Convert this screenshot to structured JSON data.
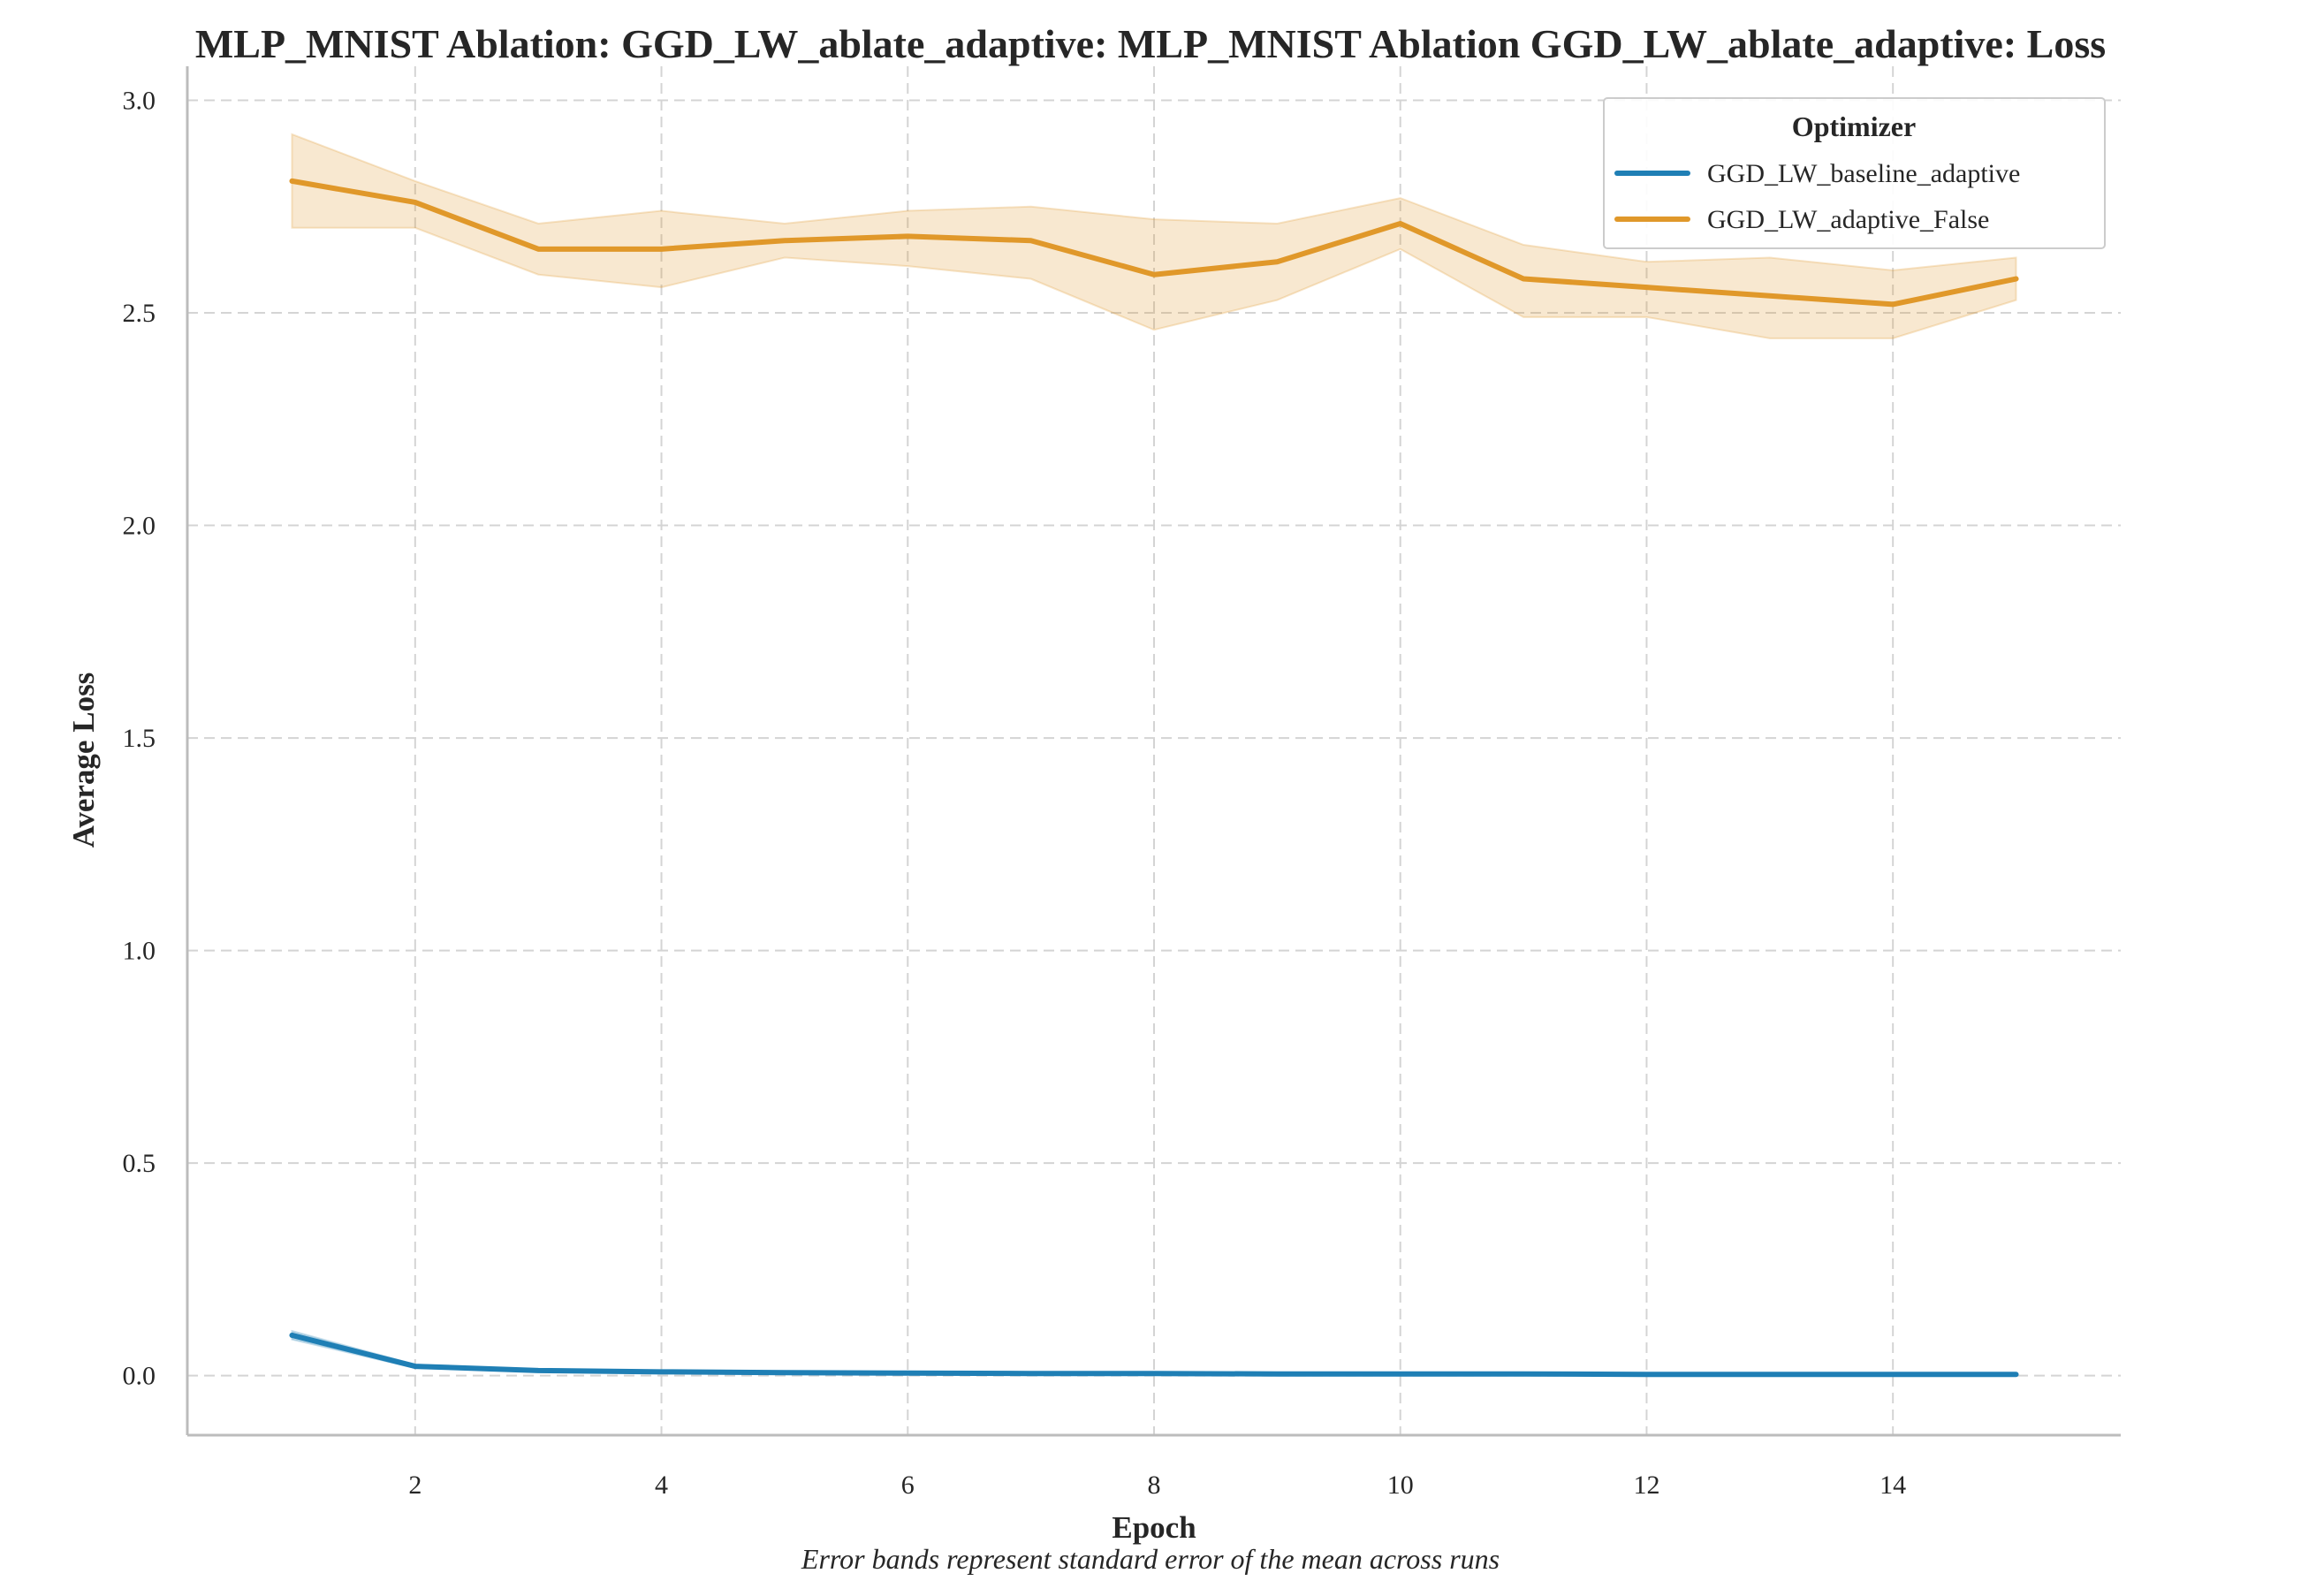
{
  "chart_data": {
    "type": "line",
    "title": "MLP_MNIST Ablation: GGD_LW_ablate_adaptive: MLP_MNIST Ablation GGD_LW_ablate_adaptive: Loss",
    "xlabel": "Epoch",
    "ylabel": "Average Loss",
    "caption": "Error bands represent standard error of the mean across runs",
    "xlim": [
      0.15,
      15.85
    ],
    "ylim": [
      -0.14,
      3.08
    ],
    "xticks": [
      2,
      4,
      6,
      8,
      10,
      12,
      14
    ],
    "yticks": [
      0.0,
      0.5,
      1.0,
      1.5,
      2.0,
      2.5,
      3.0
    ],
    "grid": true,
    "legend": {
      "title": "Optimizer",
      "position": "top-right"
    },
    "x": [
      1,
      2,
      3,
      4,
      5,
      6,
      7,
      8,
      9,
      10,
      11,
      12,
      13,
      14,
      15
    ],
    "series": [
      {
        "name": "GGD_LW_baseline_adaptive",
        "color": "#1f7fb5",
        "values": [
          0.095,
          0.022,
          0.012,
          0.009,
          0.007,
          0.006,
          0.005,
          0.005,
          0.004,
          0.004,
          0.004,
          0.003,
          0.003,
          0.003,
          0.003
        ],
        "lower": [
          0.085,
          0.018,
          0.01,
          0.008,
          0.006,
          0.005,
          0.004,
          0.004,
          0.003,
          0.003,
          0.003,
          0.002,
          0.002,
          0.002,
          0.002
        ],
        "upper": [
          0.105,
          0.026,
          0.014,
          0.01,
          0.008,
          0.007,
          0.006,
          0.006,
          0.005,
          0.005,
          0.005,
          0.004,
          0.004,
          0.004,
          0.004
        ]
      },
      {
        "name": "GGD_LW_adaptive_False",
        "color": "#e0982a",
        "values": [
          2.81,
          2.76,
          2.65,
          2.65,
          2.67,
          2.68,
          2.67,
          2.59,
          2.62,
          2.71,
          2.58,
          2.56,
          2.54,
          2.52,
          2.58
        ],
        "lower": [
          2.7,
          2.7,
          2.59,
          2.56,
          2.63,
          2.61,
          2.58,
          2.46,
          2.53,
          2.65,
          2.49,
          2.49,
          2.44,
          2.44,
          2.53
        ],
        "upper": [
          2.92,
          2.81,
          2.71,
          2.74,
          2.71,
          2.74,
          2.75,
          2.72,
          2.71,
          2.77,
          2.66,
          2.62,
          2.63,
          2.6,
          2.63
        ]
      }
    ]
  }
}
